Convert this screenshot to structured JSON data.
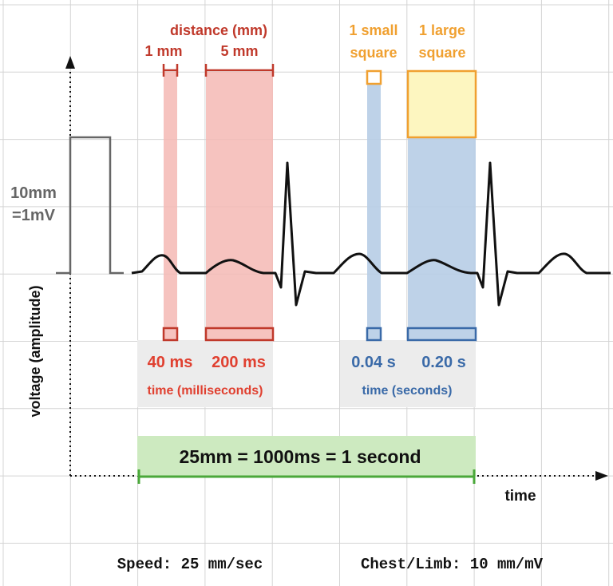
{
  "colors": {
    "grid": "#d4d4d4",
    "red": "#c0392b",
    "red_fill": "#f4b9b4",
    "orange": "#f0a030",
    "yellow_fill": "#fdf6c0",
    "blue": "#3a6aa8",
    "blue_fill": "#b7cde6",
    "green": "#4aa83a",
    "green_fill": "#cdeac0",
    "gray_box": "#ececec",
    "trace": "#111111",
    "cal_pulse": "#666666"
  },
  "labels": {
    "distance_title": "distance (mm)",
    "one_mm": "1 mm",
    "five_mm": "5 mm",
    "small_square_l1": "1 small",
    "small_square_l2": "square",
    "large_square_l1": "1 large",
    "large_square_l2": "square",
    "calibration_l1": "10mm",
    "calibration_l2": "=1mV",
    "y_axis": "voltage (amplitude)",
    "x_axis": "time",
    "ms_40": "40 ms",
    "ms_200": "200 ms",
    "time_ms": "time (milliseconds)",
    "s_004": "0.04 s",
    "s_020": "0.20 s",
    "time_s": "time (seconds)",
    "banner": "25mm = 1000ms = 1 second",
    "speed": "Speed: 25 mm/sec",
    "chest_limb": "Chest/Limb: 10 mm/mV"
  }
}
